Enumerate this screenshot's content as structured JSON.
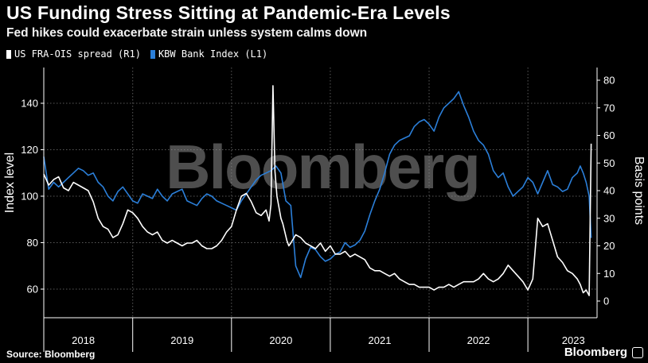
{
  "header": {
    "title": "US Funding Stress Sitting at Pandemic-Era Levels",
    "subtitle": "Fed hikes could exacerbate strain unless system calms down"
  },
  "footer": {
    "source": "Source: Bloomberg",
    "brand": "Bloomberg"
  },
  "colors": {
    "fra_ois": "#ffffff",
    "kbw": "#2b7fd9",
    "grid": "#5a5a5a"
  },
  "chart_data": {
    "type": "line",
    "title": "US Funding Stress Sitting at Pandemic-Era Levels",
    "subtitle": "Fed hikes could exacerbate strain unless system calms down",
    "watermark": "Bloomberg",
    "left_axis": {
      "label": "Index level",
      "range": [
        55,
        150
      ],
      "ticks": [
        60,
        80,
        100,
        120,
        140
      ]
    },
    "right_axis": {
      "label": "Basis points",
      "range": [
        -5,
        85
      ],
      "ticks": [
        0,
        10,
        20,
        30,
        40,
        50,
        60,
        70,
        80
      ]
    },
    "x_axis": {
      "range": [
        2017.6,
        2023.2
      ],
      "labels": [
        "2018",
        "2019",
        "2020",
        "2021",
        "2022",
        "2023"
      ],
      "label_positions": [
        2018.0,
        2019.0,
        2020.0,
        2021.0,
        2022.0,
        2022.96
      ],
      "year_boundaries": [
        2018.5,
        2019.5,
        2020.5,
        2021.5,
        2022.5
      ]
    },
    "legend": {
      "position": "top-left"
    },
    "series": [
      {
        "name": "US FRA-OIS spread (R1)",
        "axis": "right",
        "x": [
          2017.6,
          2017.65,
          2017.7,
          2017.75,
          2017.8,
          2017.85,
          2017.9,
          2017.95,
          2018.0,
          2018.05,
          2018.1,
          2018.15,
          2018.2,
          2018.25,
          2018.3,
          2018.35,
          2018.4,
          2018.45,
          2018.5,
          2018.55,
          2018.6,
          2018.65,
          2018.7,
          2018.75,
          2018.8,
          2018.85,
          2018.9,
          2018.95,
          2019.0,
          2019.05,
          2019.1,
          2019.15,
          2019.2,
          2019.25,
          2019.3,
          2019.35,
          2019.4,
          2019.45,
          2019.5,
          2019.55,
          2019.6,
          2019.65,
          2019.7,
          2019.75,
          2019.8,
          2019.85,
          2019.88,
          2019.9,
          2019.92,
          2019.94,
          2019.96,
          2019.98,
          2020.0,
          2020.02,
          2020.04,
          2020.06,
          2020.08,
          2020.1,
          2020.15,
          2020.2,
          2020.25,
          2020.3,
          2020.35,
          2020.4,
          2020.45,
          2020.5,
          2020.55,
          2020.6,
          2020.65,
          2020.7,
          2020.75,
          2020.8,
          2020.85,
          2020.9,
          2020.95,
          2021.0,
          2021.05,
          2021.1,
          2021.15,
          2021.2,
          2021.25,
          2021.3,
          2021.35,
          2021.4,
          2021.45,
          2021.5,
          2021.55,
          2021.6,
          2021.65,
          2021.7,
          2021.75,
          2021.8,
          2021.85,
          2021.9,
          2021.95,
          2022.0,
          2022.05,
          2022.1,
          2022.15,
          2022.2,
          2022.25,
          2022.3,
          2022.35,
          2022.4,
          2022.45,
          2022.5,
          2022.55,
          2022.6,
          2022.65,
          2022.7,
          2022.75,
          2022.8,
          2022.85,
          2022.9,
          2022.95,
          2023.0,
          2023.03,
          2023.06,
          2023.09,
          2023.12,
          2023.14
        ],
        "y": [
          46,
          42,
          44,
          45,
          41,
          40,
          43,
          42,
          41,
          40,
          36,
          30,
          27,
          26,
          23,
          24,
          28,
          33,
          32,
          30,
          27,
          25,
          24,
          25,
          22,
          21,
          22,
          21,
          20,
          21,
          21,
          22,
          20,
          19,
          19,
          20,
          22,
          25,
          27,
          33,
          38,
          39,
          36,
          32,
          31,
          33,
          29,
          35,
          78,
          47,
          38,
          34,
          30,
          28,
          25,
          22,
          20,
          21,
          24,
          23,
          21,
          20,
          19,
          21,
          18,
          20,
          17,
          17,
          18,
          16,
          17,
          16,
          15,
          12,
          11,
          11,
          10,
          9,
          10,
          8,
          7,
          6,
          6,
          5,
          5,
          5,
          4,
          5,
          5,
          6,
          5,
          6,
          7,
          7,
          7,
          8,
          10,
          8,
          7,
          8,
          10,
          13,
          11,
          9,
          7,
          4,
          8,
          30,
          27,
          28,
          22,
          16,
          14,
          11,
          10,
          8,
          6,
          3,
          4,
          2,
          57
        ]
      },
      {
        "name": "KBW Bank Index (L1)",
        "axis": "left",
        "x": [
          2017.6,
          2017.65,
          2017.7,
          2017.75,
          2017.8,
          2017.85,
          2017.9,
          2017.95,
          2018.0,
          2018.05,
          2018.1,
          2018.15,
          2018.2,
          2018.25,
          2018.3,
          2018.35,
          2018.4,
          2018.45,
          2018.5,
          2018.55,
          2018.6,
          2018.65,
          2018.7,
          2018.75,
          2018.8,
          2018.85,
          2018.9,
          2018.95,
          2019.0,
          2019.05,
          2019.1,
          2019.15,
          2019.2,
          2019.25,
          2019.3,
          2019.35,
          2019.4,
          2019.45,
          2019.5,
          2019.55,
          2019.6,
          2019.65,
          2019.7,
          2019.75,
          2019.8,
          2019.85,
          2019.9,
          2019.95,
          2020.0,
          2020.05,
          2020.1,
          2020.15,
          2020.2,
          2020.25,
          2020.3,
          2020.35,
          2020.4,
          2020.45,
          2020.5,
          2020.55,
          2020.6,
          2020.65,
          2020.7,
          2020.75,
          2020.8,
          2020.85,
          2020.9,
          2020.95,
          2021.0,
          2021.05,
          2021.1,
          2021.15,
          2021.2,
          2021.25,
          2021.3,
          2021.35,
          2021.4,
          2021.45,
          2021.5,
          2021.55,
          2021.6,
          2021.65,
          2021.7,
          2021.75,
          2021.8,
          2021.85,
          2021.9,
          2021.95,
          2022.0,
          2022.05,
          2022.1,
          2022.15,
          2022.2,
          2022.25,
          2022.3,
          2022.35,
          2022.4,
          2022.45,
          2022.5,
          2022.55,
          2022.6,
          2022.65,
          2022.7,
          2022.75,
          2022.8,
          2022.85,
          2022.9,
          2022.95,
          2023.0,
          2023.03,
          2023.06,
          2023.09,
          2023.12,
          2023.14
        ],
        "y": [
          117,
          103,
          106,
          104,
          106,
          108,
          110,
          112,
          111,
          109,
          110,
          106,
          104,
          100,
          98,
          102,
          104,
          101,
          98,
          97,
          101,
          100,
          99,
          103,
          100,
          98,
          101,
          102,
          103,
          98,
          97,
          96,
          99,
          101,
          100,
          98,
          97,
          96,
          95,
          94,
          98,
          101,
          104,
          107,
          109,
          110,
          111,
          113,
          110,
          98,
          96,
          70,
          65,
          73,
          78,
          77,
          74,
          72,
          73,
          75,
          76,
          80,
          78,
          79,
          81,
          85,
          92,
          98,
          103,
          110,
          118,
          122,
          124,
          125,
          126,
          130,
          132,
          133,
          131,
          128,
          134,
          138,
          140,
          142,
          145,
          139,
          134,
          128,
          124,
          122,
          118,
          111,
          108,
          110,
          104,
          100,
          102,
          104,
          108,
          106,
          101,
          106,
          111,
          105,
          104,
          102,
          103,
          108,
          110,
          113,
          110,
          106,
          100,
          82
        ]
      }
    ]
  }
}
